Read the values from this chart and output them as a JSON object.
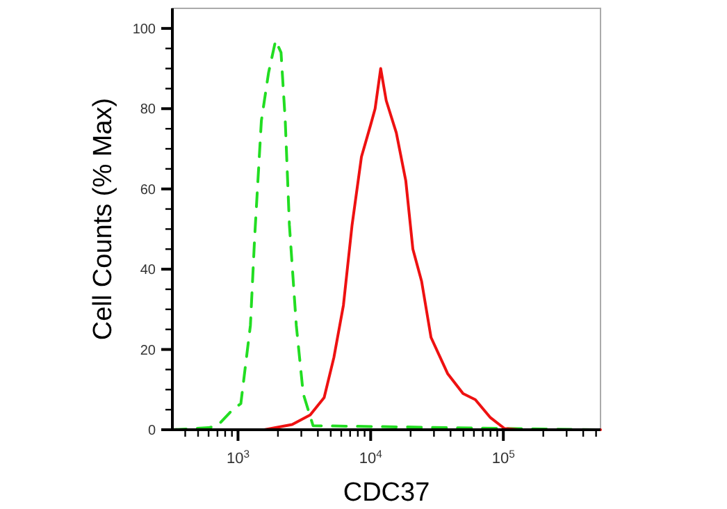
{
  "chart_data": {
    "type": "line",
    "xlabel": "CDC37",
    "ylabel": "Cell Counts (% Max)",
    "log": "x",
    "xlim": [
      320,
      540000
    ],
    "ylim": [
      0,
      105
    ],
    "xticks": [
      {
        "value": 400,
        "label": null
      },
      {
        "value": 500,
        "label": null
      },
      {
        "value": 600,
        "label": null
      },
      {
        "value": 700,
        "label": null
      },
      {
        "value": 800,
        "label": null
      },
      {
        "value": 900,
        "label": null
      },
      {
        "value": 1000,
        "label": "10$^{3}$"
      },
      {
        "value": 2000,
        "label": null
      },
      {
        "value": 3000,
        "label": null
      },
      {
        "value": 4000,
        "label": null
      },
      {
        "value": 5000,
        "label": null
      },
      {
        "value": 6000,
        "label": null
      },
      {
        "value": 7000,
        "label": null
      },
      {
        "value": 8000,
        "label": null
      },
      {
        "value": 9000,
        "label": null
      },
      {
        "value": 10000,
        "label": "10$^{4}$"
      },
      {
        "value": 20000,
        "label": null
      },
      {
        "value": 30000,
        "label": null
      },
      {
        "value": 40000,
        "label": null
      },
      {
        "value": 50000,
        "label": null
      },
      {
        "value": 60000,
        "label": null
      },
      {
        "value": 70000,
        "label": null
      },
      {
        "value": 80000,
        "label": null
      },
      {
        "value": 90000,
        "label": null
      },
      {
        "value": 100000,
        "label": "10$^{5}$"
      },
      {
        "value": 200000,
        "label": null
      },
      {
        "value": 300000,
        "label": null
      },
      {
        "value": 400000,
        "label": null
      },
      {
        "value": 500000,
        "label": null
      }
    ],
    "yticks": [
      0,
      {
        "value": 5,
        "label": null
      },
      {
        "value": 10,
        "label": null
      },
      {
        "value": 15,
        "label": null
      },
      20,
      {
        "value": 25,
        "label": null
      },
      {
        "value": 30,
        "label": null
      },
      {
        "value": 35,
        "label": null
      },
      40,
      {
        "value": 45,
        "label": null
      },
      {
        "value": 50,
        "label": null
      },
      {
        "value": 55,
        "label": null
      },
      60,
      {
        "value": 65,
        "label": null
      },
      {
        "value": 70,
        "label": null
      },
      {
        "value": 75,
        "label": null
      },
      80,
      {
        "value": 85,
        "label": null
      },
      {
        "value": 90,
        "label": null
      },
      {
        "value": 95,
        "label": null
      },
      100
    ],
    "marker": "none",
    "series": [
      {
        "color": "#22dd22",
        "line_style": "dashed",
        "x": [
          320,
          600,
          700,
          910,
          1050,
          1240,
          1335,
          1500,
          1700,
          1920,
          2110,
          2270,
          2440,
          2750,
          3100,
          3680,
          540000
        ],
        "values": [
          0,
          0.5,
          1,
          5,
          6.5,
          26,
          48,
          77,
          89,
          97,
          94,
          77,
          51,
          26,
          9,
          1,
          0
        ]
      },
      {
        "color": "#ee1111",
        "line_style": "solid",
        "x": [
          320,
          1580,
          2560,
          3500,
          4460,
          5280,
          6230,
          7240,
          8520,
          10000,
          10800,
          11900,
          13100,
          15600,
          18400,
          20800,
          24200,
          28500,
          38000,
          49700,
          61500,
          80000,
          102000,
          130000,
          540000
        ],
        "values": [
          0,
          0,
          1.3,
          3.7,
          8,
          18,
          31,
          51,
          68,
          76,
          80,
          90,
          82,
          74,
          62,
          45,
          37,
          23,
          14,
          9,
          7.5,
          3,
          0.3,
          0,
          0
        ]
      }
    ]
  }
}
